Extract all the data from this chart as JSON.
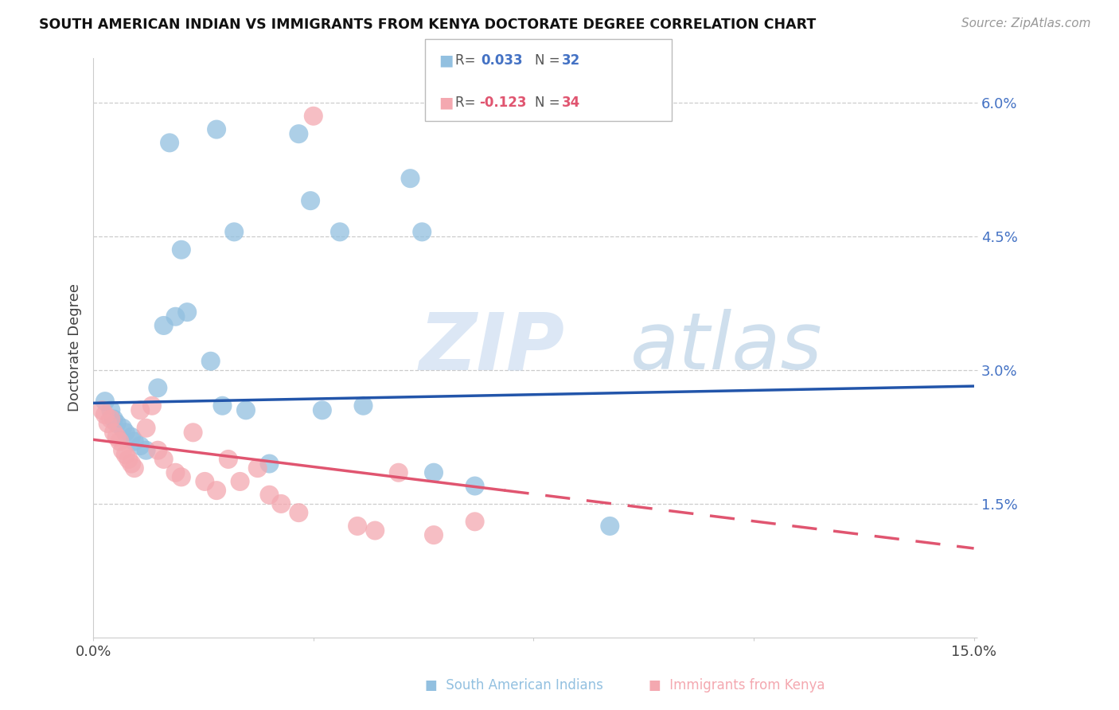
{
  "title": "SOUTH AMERICAN INDIAN VS IMMIGRANTS FROM KENYA DOCTORATE DEGREE CORRELATION CHART",
  "source": "Source: ZipAtlas.com",
  "ylabel": "Doctorate Degree",
  "yticks": [
    0.0,
    1.5,
    3.0,
    4.5,
    6.0
  ],
  "ytick_labels": [
    "",
    "1.5%",
    "3.0%",
    "4.5%",
    "6.0%"
  ],
  "xlim": [
    0.0,
    15.0
  ],
  "ylim": [
    0.0,
    6.5
  ],
  "blue_color": "#92c0e0",
  "pink_color": "#f4a8b0",
  "line_blue": "#2255aa",
  "line_pink": "#e05570",
  "blue_line_x0": 0.0,
  "blue_line_y0": 2.63,
  "blue_line_x1": 15.0,
  "blue_line_y1": 2.82,
  "pink_line_x0": 0.0,
  "pink_line_y0": 2.22,
  "pink_line_x1": 15.0,
  "pink_line_y1": 1.0,
  "pink_solid_end": 7.0,
  "blue_x": [
    1.3,
    2.1,
    3.5,
    3.7,
    5.4,
    1.5,
    2.4,
    4.2,
    5.6,
    0.2,
    0.3,
    0.35,
    0.4,
    0.5,
    0.55,
    0.65,
    0.7,
    0.8,
    0.9,
    1.1,
    1.2,
    1.4,
    1.6,
    2.0,
    2.2,
    2.6,
    3.0,
    3.9,
    5.8,
    8.8,
    6.5,
    4.6
  ],
  "blue_y": [
    5.55,
    5.7,
    5.65,
    4.9,
    5.15,
    4.35,
    4.55,
    4.55,
    4.55,
    2.65,
    2.55,
    2.45,
    2.4,
    2.35,
    2.3,
    2.25,
    2.2,
    2.15,
    2.1,
    2.8,
    3.5,
    3.6,
    3.65,
    3.1,
    2.6,
    2.55,
    1.95,
    2.55,
    1.85,
    1.25,
    1.7,
    2.6
  ],
  "pink_x": [
    3.75,
    0.15,
    0.2,
    0.25,
    0.3,
    0.35,
    0.4,
    0.45,
    0.5,
    0.55,
    0.6,
    0.65,
    0.7,
    0.8,
    0.9,
    1.0,
    1.1,
    1.2,
    1.4,
    1.5,
    1.7,
    1.9,
    2.1,
    2.3,
    2.5,
    2.8,
    3.0,
    3.2,
    3.5,
    4.5,
    4.8,
    5.2,
    6.5,
    5.8
  ],
  "pink_y": [
    5.85,
    2.55,
    2.5,
    2.4,
    2.45,
    2.3,
    2.25,
    2.2,
    2.1,
    2.05,
    2.0,
    1.95,
    1.9,
    2.55,
    2.35,
    2.6,
    2.1,
    2.0,
    1.85,
    1.8,
    2.3,
    1.75,
    1.65,
    2.0,
    1.75,
    1.9,
    1.6,
    1.5,
    1.4,
    1.25,
    1.2,
    1.85,
    1.3,
    1.15
  ]
}
